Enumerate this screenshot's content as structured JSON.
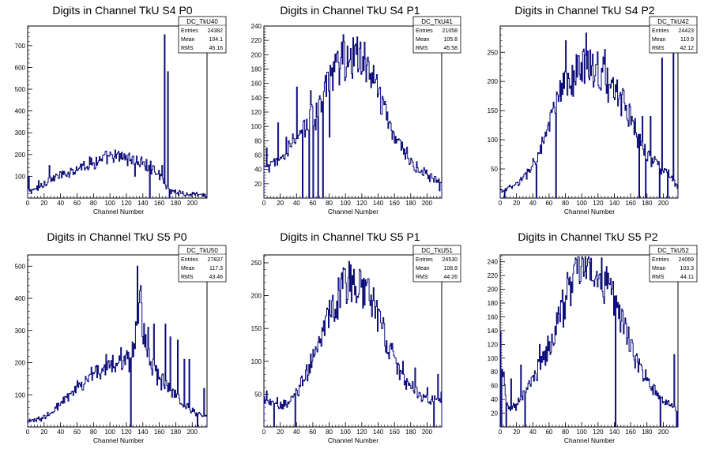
{
  "chart_data": [
    {
      "type": "histogram",
      "title": "Digits in Channel TkU S4 P0",
      "xlabel": "Channel Number",
      "ylabel": "",
      "xlim": [
        0,
        218
      ],
      "ylim": [
        0,
        790
      ],
      "xticks": [
        0,
        20,
        40,
        60,
        80,
        100,
        120,
        140,
        160,
        180,
        200
      ],
      "yticks": [
        100,
        200,
        300,
        400,
        500,
        600,
        700
      ],
      "stats": {
        "name": "DC_TkU40",
        "entries_label": "Entries",
        "entries": "24382",
        "mean_label": "Mean",
        "mean": "104.1",
        "rms_label": "RMS",
        "rms": "45.16"
      },
      "profile": [
        [
          0,
          30
        ],
        [
          10,
          40
        ],
        [
          25,
          80
        ],
        [
          45,
          110
        ],
        [
          60,
          140
        ],
        [
          80,
          165
        ],
        [
          100,
          185
        ],
        [
          118,
          190
        ],
        [
          130,
          175
        ],
        [
          145,
          150
        ],
        [
          160,
          115
        ],
        [
          166,
          60
        ],
        [
          175,
          35
        ],
        [
          190,
          20
        ],
        [
          218,
          10
        ]
      ],
      "spikes": [
        [
          1,
          100
        ],
        [
          13,
          80
        ],
        [
          26,
          150
        ],
        [
          45,
          110
        ],
        [
          130,
          100
        ],
        [
          148,
          0
        ],
        [
          163,
          150
        ],
        [
          166,
          750
        ],
        [
          170,
          580
        ],
        [
          172,
          0
        ]
      ]
    },
    {
      "type": "histogram",
      "title": "Digits in Channel TkU S4 P1",
      "xlabel": "Channel Number",
      "ylabel": "",
      "xlim": [
        0,
        218
      ],
      "ylim": [
        0,
        240
      ],
      "xticks": [
        0,
        20,
        40,
        60,
        80,
        100,
        120,
        140,
        160,
        180,
        200
      ],
      "yticks": [
        20,
        40,
        60,
        80,
        100,
        120,
        140,
        160,
        180,
        200,
        220,
        240
      ],
      "stats": {
        "name": "DC_TkU41",
        "entries_label": "Entries",
        "entries": "21058",
        "mean_label": "Mean",
        "mean": "105.8",
        "rms_label": "RMS",
        "rms": "45.58"
      },
      "profile": [
        [
          0,
          40
        ],
        [
          10,
          45
        ],
        [
          20,
          55
        ],
        [
          35,
          75
        ],
        [
          50,
          100
        ],
        [
          65,
          130
        ],
        [
          80,
          160
        ],
        [
          95,
          190
        ],
        [
          108,
          200
        ],
        [
          118,
          195
        ],
        [
          130,
          180
        ],
        [
          145,
          130
        ],
        [
          160,
          90
        ],
        [
          175,
          60
        ],
        [
          190,
          38
        ],
        [
          205,
          28
        ],
        [
          218,
          22
        ]
      ],
      "spikes": [
        [
          3,
          70
        ],
        [
          17,
          105
        ],
        [
          27,
          85
        ],
        [
          40,
          155
        ],
        [
          47,
          0
        ],
        [
          50,
          85
        ],
        [
          55,
          0
        ],
        [
          57,
          150
        ],
        [
          60,
          0
        ],
        [
          63,
          95
        ],
        [
          66,
          0
        ],
        [
          70,
          120
        ],
        [
          72,
          0
        ],
        [
          80,
          85
        ],
        [
          84,
          150
        ],
        [
          97,
          228
        ],
        [
          112,
          215
        ],
        [
          132,
          175
        ],
        [
          215,
          10
        ]
      ]
    },
    {
      "type": "histogram",
      "title": "Digits in Channel TkU S4 P2",
      "xlabel": "Channel Number",
      "ylabel": "",
      "xlim": [
        0,
        218
      ],
      "ylim": [
        0,
        295
      ],
      "xticks": [
        0,
        20,
        40,
        60,
        80,
        100,
        120,
        140,
        160,
        180,
        200
      ],
      "yticks": [
        50,
        100,
        150,
        200,
        250
      ],
      "stats": {
        "name": "DC_TkU42",
        "entries_label": "Entries",
        "entries": "24423",
        "mean_label": "Mean",
        "mean": "110.9",
        "rms_label": "RMS",
        "rms": "42.12"
      },
      "profile": [
        [
          0,
          12
        ],
        [
          15,
          20
        ],
        [
          30,
          35
        ],
        [
          45,
          70
        ],
        [
          55,
          100
        ],
        [
          65,
          150
        ],
        [
          80,
          190
        ],
        [
          95,
          215
        ],
        [
          108,
          235
        ],
        [
          120,
          220
        ],
        [
          135,
          190
        ],
        [
          150,
          170
        ],
        [
          160,
          140
        ],
        [
          170,
          100
        ],
        [
          180,
          75
        ],
        [
          195,
          55
        ],
        [
          210,
          35
        ],
        [
          218,
          20
        ]
      ],
      "spikes": [
        [
          5,
          0
        ],
        [
          33,
          50
        ],
        [
          44,
          0
        ],
        [
          68,
          0
        ],
        [
          80,
          270
        ],
        [
          105,
          283
        ],
        [
          128,
          255
        ],
        [
          170,
          0
        ],
        [
          174,
          140
        ],
        [
          178,
          0
        ],
        [
          184,
          140
        ],
        [
          195,
          0
        ],
        [
          198,
          240
        ],
        [
          205,
          0
        ],
        [
          212,
          255
        ]
      ]
    },
    {
      "type": "histogram",
      "title": "Digits in Channel TkU S5 P0",
      "xlabel": "Channel Number",
      "ylabel": "",
      "xlim": [
        0,
        218
      ],
      "ylim": [
        0,
        535
      ],
      "xticks": [
        0,
        20,
        40,
        60,
        80,
        100,
        120,
        140,
        160,
        180,
        200
      ],
      "yticks": [
        100,
        200,
        300,
        400,
        500
      ],
      "stats": {
        "name": "DC_TkU50",
        "entries_label": "Entries",
        "entries": "27837",
        "mean_label": "Mean",
        "mean": "117.3",
        "rms_label": "RMS",
        "rms": "43.46"
      },
      "profile": [
        [
          0,
          15
        ],
        [
          10,
          20
        ],
        [
          20,
          30
        ],
        [
          40,
          70
        ],
        [
          60,
          120
        ],
        [
          80,
          165
        ],
        [
          100,
          200
        ],
        [
          118,
          215
        ],
        [
          125,
          200
        ],
        [
          132,
          300
        ],
        [
          136,
          380
        ],
        [
          142,
          280
        ],
        [
          150,
          200
        ],
        [
          160,
          150
        ],
        [
          175,
          110
        ],
        [
          190,
          70
        ],
        [
          205,
          45
        ],
        [
          218,
          30
        ]
      ],
      "spikes": [
        [
          125,
          0
        ],
        [
          133,
          500
        ],
        [
          137,
          440
        ],
        [
          146,
          310
        ],
        [
          153,
          320
        ],
        [
          158,
          180
        ],
        [
          167,
          320
        ],
        [
          173,
          280
        ],
        [
          182,
          270
        ],
        [
          190,
          210
        ],
        [
          196,
          210
        ],
        [
          206,
          0
        ],
        [
          214,
          120
        ]
      ]
    },
    {
      "type": "histogram",
      "title": "Digits in Channel TkU S5 P1",
      "xlabel": "Channel Number",
      "ylabel": "",
      "xlim": [
        0,
        218
      ],
      "ylim": [
        0,
        262
      ],
      "xticks": [
        0,
        20,
        40,
        60,
        80,
        100,
        120,
        140,
        160,
        180,
        200
      ],
      "yticks": [
        50,
        100,
        150,
        200,
        250
      ],
      "stats": {
        "name": "DC_TkU51",
        "entries_label": "Entries",
        "entries": "24530",
        "mean_label": "Mean",
        "mean": "108.9",
        "rms_label": "RMS",
        "rms": "44.26"
      },
      "profile": [
        [
          0,
          45
        ],
        [
          10,
          35
        ],
        [
          20,
          30
        ],
        [
          35,
          45
        ],
        [
          50,
          75
        ],
        [
          65,
          120
        ],
        [
          80,
          165
        ],
        [
          95,
          205
        ],
        [
          108,
          225
        ],
        [
          120,
          215
        ],
        [
          135,
          185
        ],
        [
          150,
          130
        ],
        [
          160,
          100
        ],
        [
          175,
          70
        ],
        [
          190,
          50
        ],
        [
          205,
          40
        ],
        [
          218,
          45
        ]
      ],
      "spikes": [
        [
          3,
          55
        ],
        [
          12,
          0
        ],
        [
          16,
          45
        ],
        [
          38,
          0
        ],
        [
          45,
          75
        ],
        [
          52,
          95
        ],
        [
          104,
          252
        ],
        [
          117,
          240
        ],
        [
          125,
          215
        ],
        [
          130,
          185
        ],
        [
          145,
          150
        ],
        [
          170,
          100
        ],
        [
          185,
          90
        ],
        [
          200,
          60
        ],
        [
          208,
          0
        ],
        [
          213,
          80
        ]
      ]
    },
    {
      "type": "histogram",
      "title": "Digits in Channel TkU S5 P2",
      "xlabel": "Channel Number",
      "ylabel": "",
      "xlim": [
        0,
        218
      ],
      "ylim": [
        0,
        250
      ],
      "xticks": [
        0,
        20,
        40,
        60,
        80,
        100,
        120,
        140,
        160,
        180,
        200
      ],
      "yticks": [
        20,
        40,
        60,
        80,
        100,
        120,
        140,
        160,
        180,
        200,
        220,
        240
      ],
      "stats": {
        "name": "DC_TkU52",
        "entries_label": "Entries",
        "entries": "24069",
        "mean_label": "Mean",
        "mean": "103.3",
        "rms_label": "RMS",
        "rms": "44.11"
      },
      "profile": [
        [
          0,
          130
        ],
        [
          4,
          70
        ],
        [
          10,
          25
        ],
        [
          20,
          30
        ],
        [
          35,
          60
        ],
        [
          50,
          90
        ],
        [
          65,
          130
        ],
        [
          80,
          185
        ],
        [
          92,
          220
        ],
        [
          102,
          232
        ],
        [
          115,
          230
        ],
        [
          128,
          210
        ],
        [
          140,
          190
        ],
        [
          150,
          150
        ],
        [
          165,
          100
        ],
        [
          180,
          70
        ],
        [
          195,
          45
        ],
        [
          210,
          30
        ],
        [
          218,
          20
        ]
      ],
      "spikes": [
        [
          1,
          0
        ],
        [
          7,
          0
        ],
        [
          13,
          70
        ],
        [
          25,
          90
        ],
        [
          30,
          0
        ],
        [
          48,
          120
        ],
        [
          141,
          0
        ],
        [
          196,
          0
        ],
        [
          213,
          105
        ],
        [
          216,
          0
        ]
      ]
    }
  ]
}
